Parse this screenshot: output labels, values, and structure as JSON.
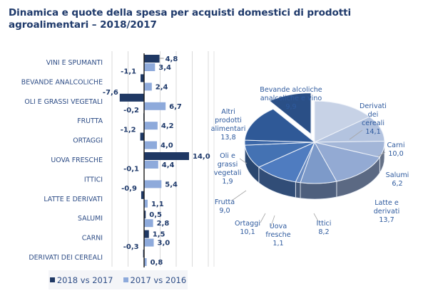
{
  "title": "Dinamica e quote della spesa per acquisti domestici di prodotti agroalimentari – 2018/2017",
  "colors": {
    "title": "#1f3a6b",
    "series_2018": "#1f3864",
    "series_2017": "#8eaadb",
    "grid": "#d9d9d9",
    "axis": "#1a1a1a"
  },
  "chart_data": [
    {
      "type": "bar",
      "orientation": "horizontal",
      "title": "",
      "xlabel": "",
      "ylabel": "",
      "xlim": [
        -10,
        20
      ],
      "grid": true,
      "legend_position": "bottom",
      "categories": [
        "VINI E SPUMANTI",
        "BEVANDE ANALCOLICHE",
        "OLI E GRASSI VEGETALI",
        "FRUTTA",
        "ORTAGGI",
        "UOVA FRESCHE",
        "ITTICI",
        "LATTE E DERIVATI",
        "SALUMI",
        "CARNI",
        "DERIVATI DEI CEREALI"
      ],
      "series": [
        {
          "name": "2018 vs 2017",
          "values": [
            4.8,
            -1.1,
            -7.6,
            -0.2,
            -1.2,
            14.0,
            -0.1,
            -0.9,
            0.5,
            1.5,
            -0.3
          ],
          "labels": [
            "4,8",
            "-1,1",
            "-7,6",
            "-0,2",
            "-1,2",
            "14,0",
            "-0,1",
            "-0,9",
            "0,5",
            "1,5",
            "-0,3"
          ]
        },
        {
          "name": "2017 vs 2016",
          "values": [
            3.4,
            2.4,
            6.7,
            4.2,
            4.0,
            4.4,
            5.4,
            1.1,
            2.8,
            3.0,
            0.8
          ],
          "labels": [
            "3,4",
            "2,4",
            "6,7",
            "4,2",
            "4,0",
            "4,4",
            "5,4",
            "1,1",
            "2,8",
            "3,0",
            "0,8"
          ]
        }
      ]
    },
    {
      "type": "pie",
      "style": "3d-exploded",
      "title": "",
      "slices": [
        {
          "label": "Derivati dei cereali",
          "lines": [
            "Derivati",
            "dei",
            "cereali",
            "14,1"
          ],
          "value": 14.1,
          "color": "#c7d2e6"
        },
        {
          "label": "Carni",
          "lines": [
            "Carni",
            "10,0"
          ],
          "value": 10.0,
          "color": "#b3c3df"
        },
        {
          "label": "Salumi",
          "lines": [
            "Salumi",
            "6,2"
          ],
          "value": 6.2,
          "color": "#a3b6d8"
        },
        {
          "label": "Latte e derivati",
          "lines": [
            "Latte e",
            "derivati",
            "13,7"
          ],
          "value": 13.7,
          "color": "#93aad3"
        },
        {
          "label": "Ittici",
          "lines": [
            "Ittici",
            "8,2"
          ],
          "value": 8.2,
          "color": "#7d9ac9"
        },
        {
          "label": "Uova fresche",
          "lines": [
            "Uova",
            "fresche",
            "1,1"
          ],
          "value": 1.1,
          "color": "#6a8cc2"
        },
        {
          "label": "Ortaggi",
          "lines": [
            "Ortaggi",
            "10,1"
          ],
          "value": 10.1,
          "color": "#4f7cc0"
        },
        {
          "label": "Frutta",
          "lines": [
            "Frutta",
            "9,0"
          ],
          "value": 9.0,
          "color": "#4472b3"
        },
        {
          "label": "Oli e grassi vegetali",
          "lines": [
            "Oli e",
            "grassi",
            "vegetali",
            "1,9"
          ],
          "value": 1.9,
          "color": "#3d68a8"
        },
        {
          "label": "Altri prodotti alimentari",
          "lines": [
            "Altri",
            "prodotti",
            "alimentari",
            "13,8"
          ],
          "value": 13.8,
          "color": "#2f5997"
        },
        {
          "label": "Bevande alcoliche analcoliche e vino",
          "lines": [
            "Bevande alcoliche",
            "analcoliche e vino",
            "9,9"
          ],
          "value": 9.9,
          "color": "#2a4f86",
          "exploded": true
        }
      ]
    }
  ],
  "legend": {
    "items": [
      {
        "label": "2018 vs 2017",
        "color": "#1f3864"
      },
      {
        "label": "2017 vs 2016",
        "color": "#8eaadb"
      }
    ]
  }
}
